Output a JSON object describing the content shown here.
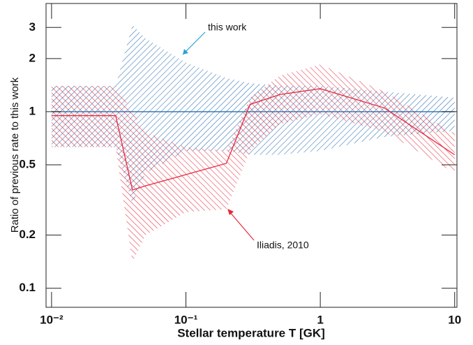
{
  "chart_data": {
    "type": "band",
    "x_label": "Stellar temperature T  [GK]",
    "y_label": "Ratio of previous rate to this work",
    "x_log": true,
    "y_log": true,
    "xlim": [
      0.0091,
      10.4
    ],
    "ylim": [
      0.078,
      4.1
    ],
    "xticks": [
      {
        "value": 0.01,
        "label": "10⁻²"
      },
      {
        "value": 0.1,
        "label": "10⁻¹"
      },
      1,
      10
    ],
    "yticks": [
      0.1,
      0.2,
      0.5,
      1,
      2,
      3
    ],
    "x": [
      0.01,
      0.03,
      0.04,
      0.05,
      0.1,
      0.2,
      0.3,
      0.5,
      1,
      3,
      10
    ],
    "series": [
      {
        "name": "this work",
        "color": "#2a6fb0",
        "values": [
          1,
          1,
          1,
          1,
          1,
          1,
          1,
          1,
          1,
          1,
          1
        ],
        "upper": [
          1.4,
          1.4,
          3.1,
          2.6,
          1.9,
          1.55,
          1.45,
          1.4,
          1.4,
          1.3,
          1.2
        ],
        "lower": [
          0.63,
          0.63,
          0.3,
          0.45,
          0.6,
          0.6,
          0.57,
          0.57,
          0.6,
          0.72,
          0.78
        ]
      },
      {
        "name": "Iliadis, 2010",
        "color": "#e8283c",
        "values": [
          0.95,
          0.95,
          0.36,
          0.38,
          0.44,
          0.51,
          1.1,
          1.25,
          1.35,
          1.05,
          0.57
        ],
        "upper": [
          1.4,
          1.4,
          1.0,
          0.76,
          0.63,
          0.6,
          1.2,
          1.6,
          1.85,
          1.3,
          0.75
        ],
        "lower": [
          0.63,
          0.63,
          0.14,
          0.2,
          0.27,
          0.28,
          0.6,
          0.85,
          0.97,
          0.77,
          0.45
        ]
      }
    ]
  }
}
